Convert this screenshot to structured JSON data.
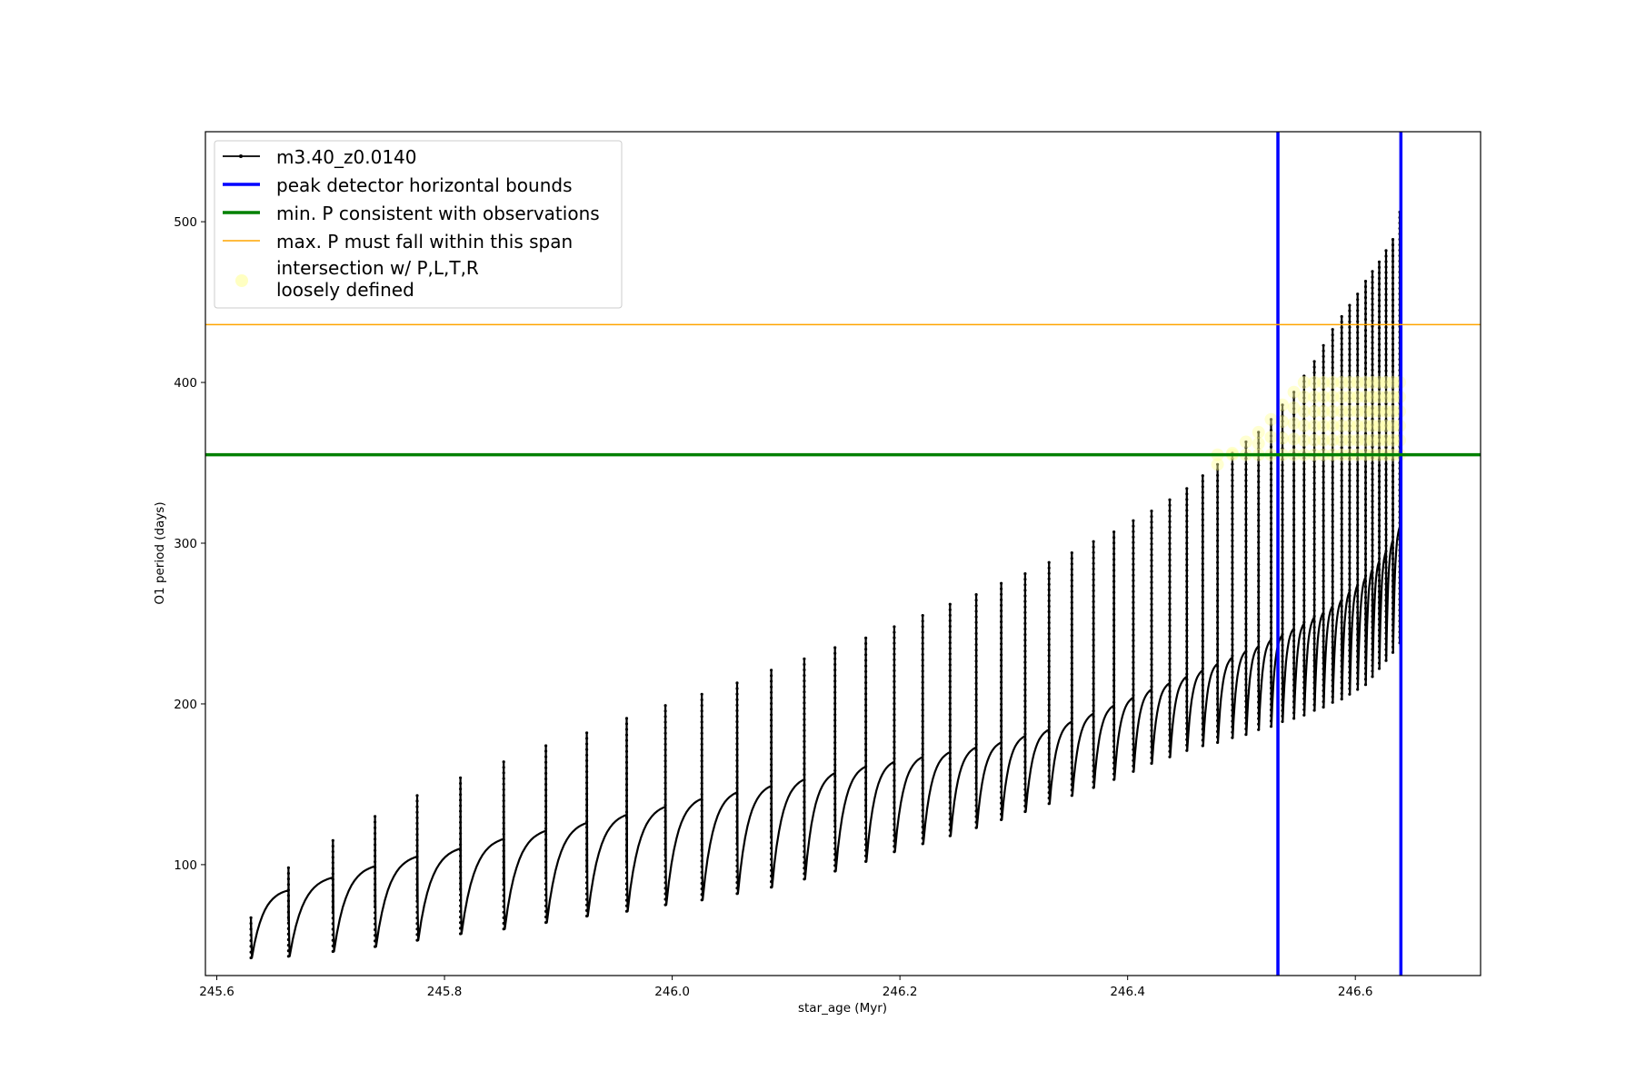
{
  "chart_data": {
    "type": "line",
    "xlabel": "star_age (Myr)",
    "ylabel": "O1 period (days)",
    "xlim": [
      245.59,
      246.71
    ],
    "ylim": [
      31,
      556
    ],
    "xticks": [
      245.6,
      245.8,
      246.0,
      246.2,
      246.4,
      246.6
    ],
    "xtick_labels": [
      "245.6",
      "245.8",
      "246.0",
      "246.2",
      "246.4",
      "246.6"
    ],
    "yticks": [
      100,
      200,
      300,
      400,
      500
    ],
    "ytick_labels": [
      "100",
      "200",
      "300",
      "400",
      "500"
    ],
    "legend_position": "upper-left",
    "grid": false,
    "series": [
      {
        "name": "m3.40_z0.0140",
        "style": "line-with-point-markers",
        "color": "#000000",
        "pulse_times": [
          245.63,
          245.663,
          245.702,
          245.739,
          245.776,
          245.814,
          245.852,
          245.889,
          245.925,
          245.96,
          245.994,
          246.026,
          246.057,
          246.087,
          246.116,
          246.143,
          246.17,
          246.195,
          246.22,
          246.244,
          246.267,
          246.289,
          246.31,
          246.331,
          246.351,
          246.37,
          246.388,
          246.405,
          246.421,
          246.437,
          246.452,
          246.466,
          246.479,
          246.492,
          246.504,
          246.515,
          246.526,
          246.536,
          246.546,
          246.555,
          246.564,
          246.572,
          246.58,
          246.588,
          246.595,
          246.602,
          246.609,
          246.615,
          246.621,
          246.627,
          246.633,
          246.639
        ],
        "cycle_min_period": [
          42,
          43,
          46,
          49,
          53,
          57,
          60,
          64,
          68,
          71,
          75,
          78,
          82,
          86,
          91,
          96,
          102,
          108,
          113,
          118,
          123,
          128,
          133,
          138,
          143,
          148,
          153,
          158,
          163,
          167,
          171,
          174,
          176,
          179,
          181,
          184,
          186,
          189,
          191,
          193,
          196,
          198,
          201,
          203,
          206,
          209,
          212,
          217,
          222,
          227,
          232,
          238
        ],
        "cycle_max_period": [
          84,
          92,
          99,
          105,
          110,
          116,
          121,
          126,
          131,
          136,
          141,
          145,
          149,
          153,
          157,
          161,
          164,
          167,
          170,
          173,
          176,
          180,
          184,
          189,
          194,
          199,
          204,
          209,
          213,
          217,
          221,
          225,
          229,
          233,
          236,
          240,
          243,
          247,
          250,
          254,
          257,
          261,
          265,
          270,
          274,
          279,
          284,
          289,
          295,
          302,
          310,
          319
        ],
        "spike_peak_period": [
          67,
          98,
          115,
          130,
          143,
          154,
          164,
          174,
          182,
          191,
          199,
          206,
          213,
          221,
          228,
          235,
          241,
          248,
          255,
          262,
          268,
          275,
          281,
          288,
          294,
          301,
          307,
          314,
          320,
          327,
          334,
          342,
          349,
          356,
          363,
          369,
          377,
          386,
          394,
          404,
          413,
          423,
          433,
          441,
          448,
          455,
          463,
          469,
          475,
          482,
          489,
          506
        ],
        "final_point": {
          "x": 246.64,
          "y": 326
        }
      },
      {
        "name": "peak detector horizontal bounds",
        "type": "vline",
        "color": "#0000ff",
        "x": [
          246.532,
          246.64
        ]
      },
      {
        "name": "min. P consistent with observations",
        "type": "hline",
        "color": "#008000",
        "y": 355
      },
      {
        "name": "max. P must fall within this span",
        "type": "hline",
        "color": "#ffa500",
        "y": 436
      },
      {
        "name": "intersection w/ P,L,T,R\nloosely defined",
        "type": "scatter",
        "color": "#ffff99",
        "x_range": [
          246.47,
          246.64
        ],
        "y_range": [
          355,
          400
        ]
      }
    ]
  }
}
